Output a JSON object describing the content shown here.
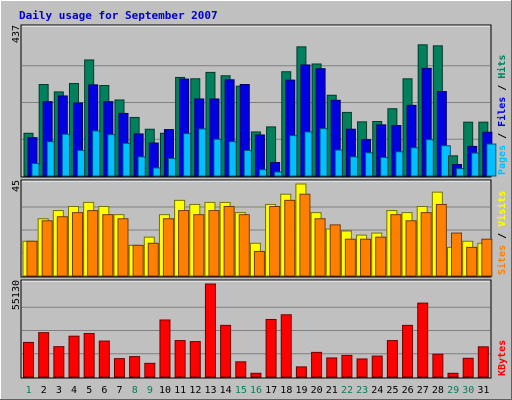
{
  "chart_data": {
    "type": "bar",
    "title": "Daily usage for September 2007",
    "background": "#c0c0c0",
    "categories": [
      "1",
      "2",
      "3",
      "4",
      "5",
      "6",
      "7",
      "8",
      "9",
      "10",
      "11",
      "12",
      "13",
      "14",
      "15",
      "16",
      "17",
      "18",
      "19",
      "20",
      "21",
      "22",
      "23",
      "24",
      "25",
      "26",
      "27",
      "28",
      "29",
      "30",
      "31"
    ],
    "weekend_days": [
      "1",
      "8",
      "9",
      "15",
      "16",
      "22",
      "23",
      "29",
      "30"
    ],
    "day_colors": {
      "weekday": "#000000",
      "weekend": "#00805c"
    },
    "panels": [
      {
        "name": "hits-files-pages",
        "ymax_label": "437",
        "ylim": [
          0,
          437
        ],
        "series": [
          {
            "name": "Hits",
            "color": "#00805c",
            "values": [
              127,
              272,
              250,
              275,
              345,
              269,
              226,
              174,
              139,
              127,
              293,
              289,
              308,
              298,
              267,
              131,
              146,
              310,
              384,
              333,
              240,
              189,
              161,
              162,
              200,
              289,
              390,
              387,
              60,
              160,
              160
            ]
          },
          {
            "name": "Files",
            "color": "#0000e0",
            "values": [
              114,
              221,
              238,
              217,
              271,
              221,
              186,
              125,
              98,
              138,
              288,
              229,
              229,
              286,
              272,
              122,
              40,
              285,
              330,
              319,
              225,
              139,
              108,
              152,
              150,
              210,
              320,
              251,
              34,
              88,
              130
            ]
          },
          {
            "name": "Pages",
            "color": "#00c0ff",
            "values": [
              37,
              102,
              124,
              76,
              134,
              123,
              97,
              57,
              24,
              52,
              126,
              140,
              109,
              102,
              76,
              19,
              12,
              120,
              131,
              141,
              77,
              57,
              69,
              55,
              72,
              84,
              108,
              90,
              22,
              68,
              95
            ]
          }
        ]
      },
      {
        "name": "visits-sites",
        "ymax_label": "45",
        "ylim": [
          0,
          45
        ],
        "series": [
          {
            "name": "Visits",
            "color": "#ffff00",
            "values": [
              17,
              28,
              32,
              34,
              36,
              34,
              30,
              15,
              19,
              30,
              37,
              35,
              36,
              36,
              31,
              16,
              35,
              40,
              45,
              31,
              23,
              22,
              20,
              21,
              32,
              31,
              34,
              41,
              14,
              17,
              16
            ]
          },
          {
            "name": "Sites",
            "color": "#ff8000",
            "values": [
              17,
              27,
              29,
              31,
              32,
              30,
              28,
              15,
              16,
              28,
              32,
              30,
              32,
              34,
              30,
              12,
              34,
              37,
              40,
              28,
              25,
              18,
              18,
              19,
              30,
              27,
              31,
              35,
              21,
              14,
              18
            ]
          }
        ]
      },
      {
        "name": "kbytes",
        "ymax_label": "55130",
        "ylim": [
          0,
          55130
        ],
        "series": [
          {
            "name": "KBytes",
            "color": "#ff0000",
            "values": [
              20500,
              26300,
              18000,
              24200,
              25800,
              21300,
              10900,
              12100,
              8100,
              33800,
              21600,
              21000,
              55130,
              30600,
              9000,
              2200,
              34100,
              36900,
              6000,
              14600,
              11300,
              12800,
              10700,
              12400,
              21600,
              30600,
              43800,
              13500,
              2200,
              11100,
              17900
            ]
          }
        ]
      }
    ],
    "legend": [
      {
        "name": "Hits",
        "color": "#00805c"
      },
      {
        "name": "Files",
        "color": "#0000e0"
      },
      {
        "name": "Pages",
        "color": "#00c0ff"
      },
      {
        "name": "Visits",
        "color": "#ffff00"
      },
      {
        "name": "Sites",
        "color": "#ff8000"
      },
      {
        "name": "KBytes",
        "color": "#ff0000"
      }
    ],
    "legend_separator": " / ",
    "legend_placement": "right-vertical",
    "grid": true
  }
}
